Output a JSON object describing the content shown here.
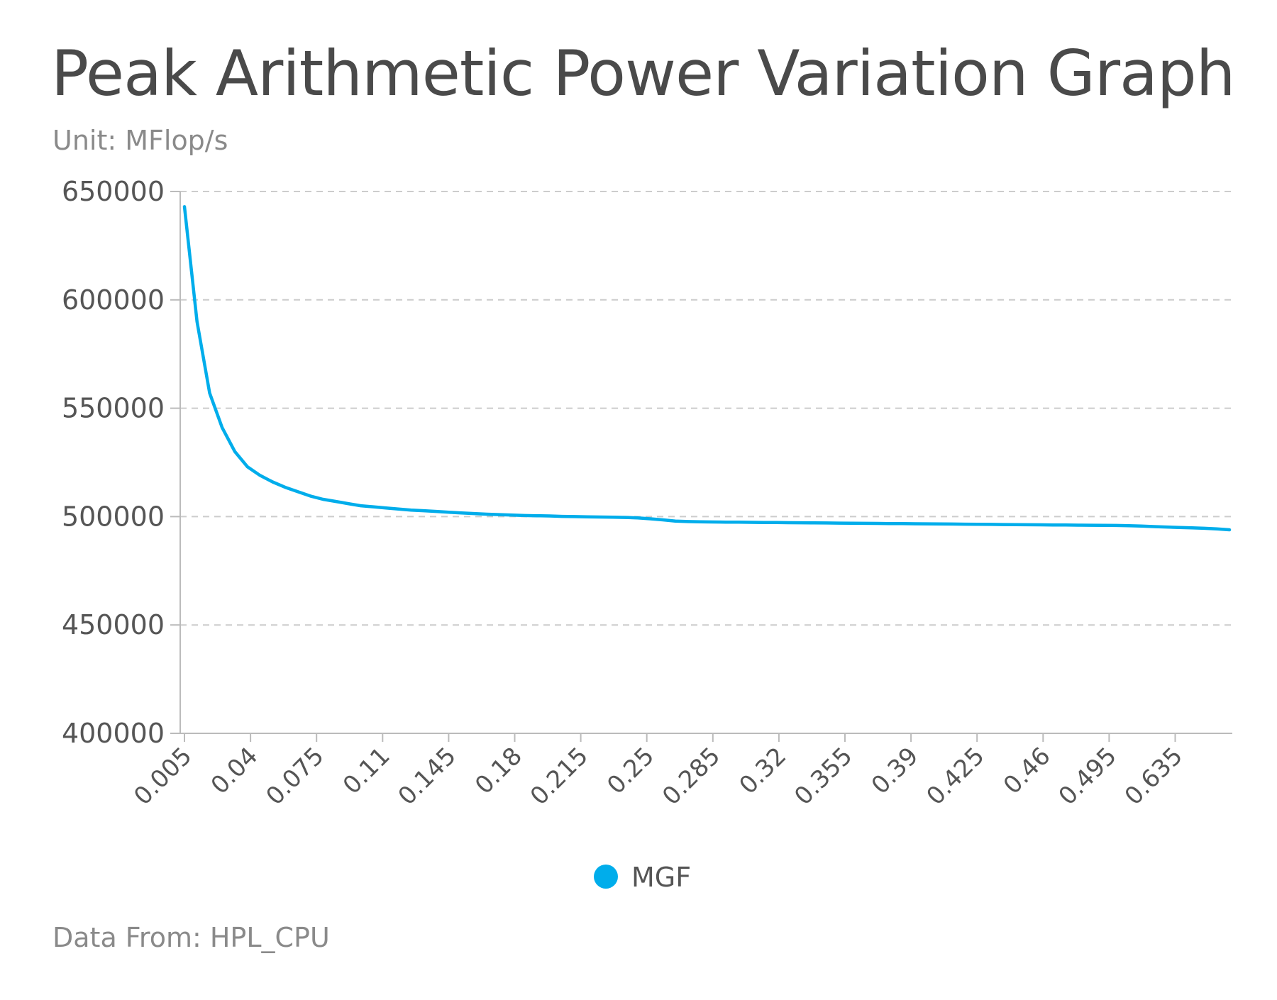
{
  "chart_data": {
    "type": "line",
    "title": "Peak Arithmetic Power Variation Graph",
    "subtitle": "Unit: MFlop/s",
    "footer": "Data From: HPL_CPU",
    "xlabel": "",
    "ylabel": "",
    "ylim": [
      400000,
      650000
    ],
    "yticks": [
      400000,
      450000,
      500000,
      550000,
      600000,
      650000
    ],
    "xtick_labels": [
      "0.005",
      "0.04",
      "0.075",
      "0.11",
      "0.145",
      "0.18",
      "0.215",
      "0.25",
      "0.285",
      "0.32",
      "0.355",
      "0.39",
      "0.425",
      "0.46",
      "0.495",
      "0.635"
    ],
    "grid": true,
    "legend_position": "bottom-center",
    "series": [
      {
        "name": "MGF",
        "color": "#00adeb",
        "values": [
          643000,
          590000,
          557000,
          541000,
          530000,
          523000,
          519000,
          516000,
          513500,
          511500,
          509500,
          508000,
          507000,
          506000,
          505000,
          504500,
          504000,
          503500,
          503000,
          502700,
          502400,
          502000,
          501700,
          501400,
          501100,
          500900,
          500700,
          500500,
          500400,
          500300,
          500100,
          500000,
          499900,
          499800,
          499700,
          499600,
          499400,
          499000,
          498500,
          497900,
          497700,
          497600,
          497500,
          497450,
          497400,
          497350,
          497300,
          497250,
          497200,
          497150,
          497100,
          497050,
          497000,
          496950,
          496900,
          496850,
          496800,
          496750,
          496700,
          496650,
          496600,
          496550,
          496500,
          496450,
          496400,
          496350,
          496300,
          496250,
          496200,
          496150,
          496100,
          496050,
          496000,
          495950,
          495900,
          495800,
          495600,
          495400,
          495200,
          495000,
          494800,
          494600,
          494300,
          493900
        ]
      }
    ]
  }
}
